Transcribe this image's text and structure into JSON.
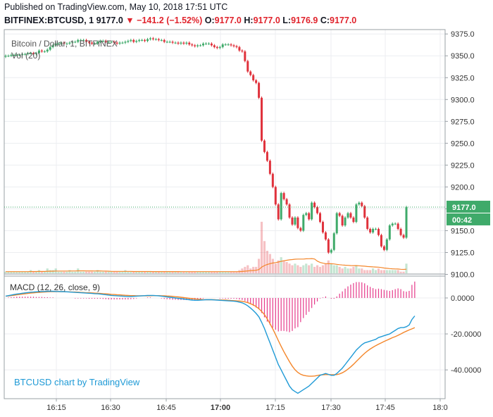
{
  "header": {
    "published": "Published on TradingView.com, May 10, 2018 17:51 UTC",
    "symbol": "BITFINEX:BTCUSD, 1",
    "last": "9177.0",
    "change": "−141.2 (−1.52%)",
    "o_label": "O:",
    "o": "9177.0",
    "h_label": "H:",
    "h": "9177.0",
    "l_label": "L:",
    "l": "9176.9",
    "c_label": "C:",
    "c": "9177.0"
  },
  "legend": {
    "main": "Bitcoin / Dollar, 1, BITFINEX",
    "vol": "Vol (20)",
    "macd": "MACD (12, 26, close, 9)"
  },
  "watermark": "BTCUSD chart by TradingView",
  "price_tag": {
    "value": "9177.0",
    "countdown": "00:42"
  },
  "colors": {
    "up": "#3faa6a",
    "down": "#e0323c",
    "macd": "#1f9ad6",
    "signal": "#f4862a",
    "hist": "#e6398a",
    "vol_ma": "#f4862a"
  },
  "chart_data": [
    {
      "type": "candlestick",
      "title": "Bitcoin / Dollar, 1, BITFINEX",
      "x_ticks": [
        "16:15",
        "16:30",
        "16:45",
        "17:00",
        "17:15",
        "17:30",
        "17:45",
        "18:0"
      ],
      "y_ticks": [
        "9375.0",
        "9350.0",
        "9325.0",
        "9300.0",
        "9275.0",
        "9250.0",
        "9225.0",
        "9200.0",
        "9175.0",
        "9150.0",
        "9125.0",
        "9100.0"
      ],
      "ylim": [
        9098,
        9380
      ],
      "close": [
        9350,
        9350,
        9351,
        9351,
        9351,
        9351,
        9352,
        9352,
        9353,
        9353,
        9352,
        9353,
        9356,
        9355,
        9355,
        9357,
        9360,
        9362,
        9364,
        9364,
        9365,
        9364,
        9364,
        9365,
        9366,
        9366,
        9368,
        9368,
        9368,
        9366,
        9365,
        9364,
        9364,
        9366,
        9367,
        9367,
        9366,
        9366,
        9366,
        9365,
        9364,
        9365,
        9365,
        9366,
        9367,
        9368,
        9366,
        9367,
        9368,
        9368,
        9367,
        9369,
        9370,
        9369,
        9369,
        9368,
        9368,
        9366,
        9366,
        9366,
        9365,
        9365,
        9364,
        9365,
        9364,
        9365,
        9363,
        9362,
        9361,
        9362,
        9362,
        9364,
        9364,
        9364,
        9362,
        9360,
        9359,
        9360,
        9363,
        9363,
        9363,
        9362,
        9361,
        9360,
        9356,
        9355,
        9344,
        9332,
        9328,
        9322,
        9319,
        9302,
        9253,
        9240,
        9230,
        9215,
        9200,
        9180,
        9163,
        9193,
        9186,
        9180,
        9165,
        9157,
        9165,
        9153,
        9150,
        9168,
        9170,
        9163,
        9182,
        9177,
        9170,
        9160,
        9148,
        9140,
        9125,
        9128,
        9147,
        9170,
        9167,
        9156,
        9165,
        9170,
        9165,
        9160,
        9180,
        9182,
        9178,
        9165,
        9152,
        9148,
        9152,
        9152,
        9145,
        9132,
        9128,
        9140,
        9156,
        9158,
        9158,
        9152,
        9145,
        9142,
        9177
      ]
    },
    {
      "type": "bar",
      "title": "Vol (20)",
      "ma_series": "Vol MA",
      "peak_values_note_free": true,
      "values": [
        1,
        1,
        1,
        1,
        1,
        1,
        1,
        1,
        1,
        2,
        1,
        1,
        2,
        1,
        1,
        3,
        2,
        2,
        3,
        1,
        1,
        1,
        1,
        2,
        1,
        1,
        3,
        1,
        1,
        1,
        1,
        1,
        1,
        2,
        1,
        1,
        1,
        1,
        1,
        1,
        1,
        1,
        1,
        2,
        1,
        1,
        1,
        1,
        1,
        1,
        1,
        1,
        1,
        1,
        1,
        1,
        1,
        1,
        1,
        1,
        1,
        1,
        1,
        1,
        1,
        1,
        1,
        1,
        1,
        1,
        1,
        1,
        1,
        1,
        1,
        1,
        1,
        1,
        1,
        1,
        1,
        1,
        1,
        1,
        2,
        3,
        4,
        5,
        3,
        4,
        4,
        9,
        32,
        20,
        14,
        12,
        9,
        6,
        8,
        10,
        8,
        7,
        6,
        5,
        6,
        5,
        4,
        5,
        6,
        5,
        6,
        4,
        5,
        4,
        5,
        6,
        8,
        6,
        5,
        5,
        4,
        3,
        4,
        3,
        3,
        4,
        5,
        3,
        3,
        2,
        2,
        2,
        3,
        2,
        3,
        2,
        2,
        2,
        2,
        2,
        2,
        2,
        1,
        1,
        6
      ],
      "ylim": [
        0,
        35
      ]
    },
    {
      "type": "line",
      "title": "MACD (12, 26, close, 9)",
      "y_ticks": [
        "0.0000",
        "-20.0000",
        "-40.0000"
      ],
      "ylim": [
        -56,
        9
      ],
      "series": [
        {
          "name": "MACD",
          "values": [
            1,
            1.3,
            1.6,
            1.9,
            2.2,
            2.4,
            2.6,
            2.8,
            3.0,
            3.2,
            3.3,
            3.4,
            3.5,
            3.6,
            3.6,
            3.7,
            3.7,
            3.7,
            3.6,
            3.6,
            3.5,
            3.5,
            3.4,
            3.3,
            3.2,
            3.1,
            3.0,
            2.9,
            2.8,
            2.7,
            2.6,
            2.5,
            2.4,
            2.3,
            2.2,
            2.0,
            1.8,
            1.6,
            1.4,
            1.3,
            1.2,
            1.1,
            1.0,
            0.9,
            0.8,
            0.8,
            0.9,
            1.0,
            1.1,
            1.2,
            1.3,
            1.4,
            1.4,
            1.4,
            1.3,
            1.2,
            1.0,
            0.8,
            0.6,
            0.4,
            0.2,
            0.0,
            -0.2,
            -0.4,
            -0.6,
            -0.8,
            -1.0,
            -1.2,
            -1.3,
            -1.3,
            -1.2,
            -1.1,
            -1.0,
            -1.0,
            -1.0,
            -1.1,
            -1.2,
            -1.3,
            -1.4,
            -1.5,
            -1.6,
            -1.7,
            -1.8,
            -2.0,
            -2.3,
            -2.7,
            -3.4,
            -4.4,
            -5.6,
            -7.0,
            -8.6,
            -10.5,
            -13.5,
            -17,
            -21,
            -25,
            -29,
            -33,
            -37,
            -40,
            -43,
            -46,
            -49,
            -51,
            -52,
            -53,
            -52,
            -51,
            -50,
            -49,
            -47.5,
            -46,
            -44.5,
            -43,
            -42.5,
            -42,
            -42.5,
            -43,
            -43,
            -42,
            -40.5,
            -39,
            -37,
            -35,
            -33,
            -31,
            -29,
            -27.5,
            -26,
            -25,
            -24.5,
            -24,
            -23.5,
            -23,
            -22,
            -21.5,
            -21,
            -20.5,
            -20,
            -19,
            -18,
            -17,
            -16.5,
            -16.5,
            -16,
            -15,
            -12,
            -10
          ]
        },
        {
          "name": "Signal",
          "values": [
            1,
            1.1,
            1.3,
            1.5,
            1.7,
            1.9,
            2.1,
            2.3,
            2.5,
            2.7,
            2.8,
            3.0,
            3.1,
            3.2,
            3.3,
            3.4,
            3.5,
            3.5,
            3.5,
            3.5,
            3.5,
            3.5,
            3.4,
            3.4,
            3.3,
            3.3,
            3.2,
            3.1,
            3.0,
            2.9,
            2.9,
            2.8,
            2.7,
            2.6,
            2.5,
            2.4,
            2.3,
            2.2,
            2.0,
            1.9,
            1.8,
            1.7,
            1.6,
            1.5,
            1.4,
            1.3,
            1.3,
            1.2,
            1.2,
            1.2,
            1.2,
            1.2,
            1.2,
            1.3,
            1.3,
            1.3,
            1.2,
            1.2,
            1.1,
            1.0,
            0.9,
            0.7,
            0.6,
            0.4,
            0.2,
            0.0,
            -0.2,
            -0.4,
            -0.5,
            -0.7,
            -0.8,
            -0.9,
            -1.0,
            -1.0,
            -1.0,
            -1.0,
            -1.1,
            -1.1,
            -1.2,
            -1.2,
            -1.3,
            -1.4,
            -1.5,
            -1.6,
            -1.7,
            -1.9,
            -2.2,
            -2.6,
            -3.2,
            -3.9,
            -4.8,
            -6.0,
            -7.5,
            -9.3,
            -11.6,
            -14.3,
            -17.2,
            -20.4,
            -23.7,
            -26.9,
            -29.9,
            -32.7,
            -35.4,
            -37.9,
            -39.9,
            -41.4,
            -42.4,
            -43.0,
            -43.3,
            -43.5,
            -43.5,
            -43.4,
            -43.1,
            -42.8,
            -42.7,
            -42.6,
            -42.6,
            -42.7,
            -42.7,
            -42.6,
            -42.2,
            -41.6,
            -40.7,
            -39.6,
            -38.3,
            -36.9,
            -35.3,
            -33.8,
            -32.2,
            -30.8,
            -29.5,
            -28.4,
            -27.4,
            -26.5,
            -25.7,
            -25.0,
            -24.2,
            -23.5,
            -22.8,
            -22.1,
            -21.5,
            -20.8,
            -20.0,
            -19.2,
            -18.5,
            -17.8,
            -17.2,
            -16.5
          ]
        }
      ]
    }
  ]
}
